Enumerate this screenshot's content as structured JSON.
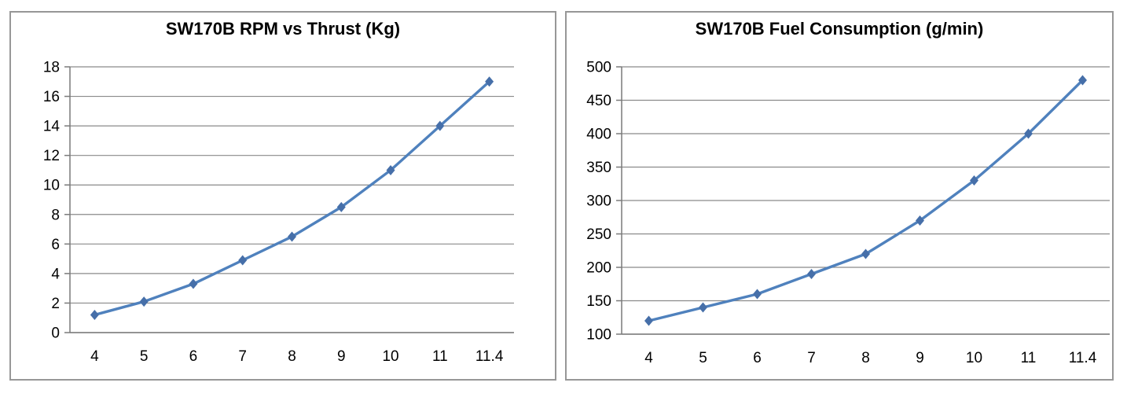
{
  "page": {
    "background_color": "#ffffff",
    "accent_color": "#4F81BD"
  },
  "chart_data": [
    {
      "type": "line",
      "title": "SW170B RPM vs Thrust (Kg)",
      "xlabel": "",
      "ylabel": "",
      "categories": [
        "4",
        "5",
        "6",
        "7",
        "8",
        "9",
        "10",
        "11",
        "11.4"
      ],
      "values": [
        1.2,
        2.1,
        3.3,
        4.9,
        6.5,
        8.5,
        11,
        14,
        17
      ],
      "ylim": [
        0,
        18
      ],
      "yticks": [
        0,
        2,
        4,
        6,
        8,
        10,
        12,
        14,
        16,
        18
      ],
      "grid": true,
      "legend": "none",
      "line_color": "#4F81BD",
      "marker": "diamond",
      "marker_color": "#466FA9"
    },
    {
      "type": "line",
      "title": "SW170B Fuel Consumption (g/min)",
      "xlabel": "",
      "ylabel": "",
      "categories": [
        "4",
        "5",
        "6",
        "7",
        "8",
        "9",
        "10",
        "11",
        "11.4"
      ],
      "values": [
        120,
        140,
        160,
        190,
        220,
        270,
        330,
        400,
        480
      ],
      "ylim": [
        100,
        500
      ],
      "yticks": [
        100,
        150,
        200,
        250,
        300,
        350,
        400,
        450,
        500
      ],
      "grid": true,
      "legend": "none",
      "line_color": "#4F81BD",
      "marker": "diamond",
      "marker_color": "#466FA9"
    }
  ]
}
